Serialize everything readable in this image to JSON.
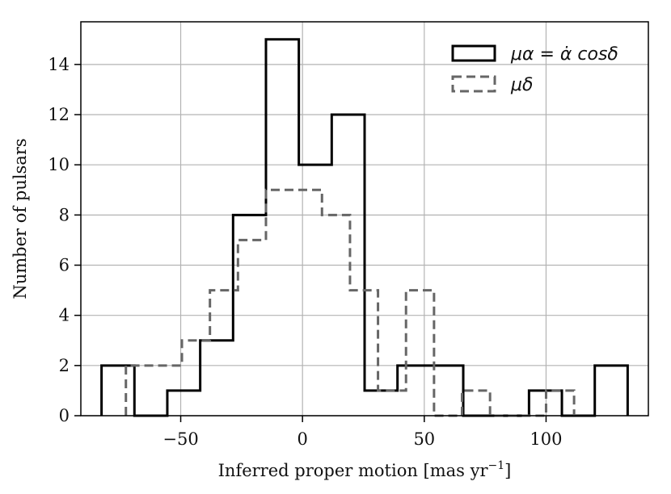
{
  "chart_data": {
    "type": "histogram",
    "xlabel": "Inferred proper motion [mas yr",
    "xlabel_sup": "−1",
    "xlabel_end": "]",
    "ylabel": "Number of pulsars",
    "xlim": [
      -91,
      142
    ],
    "ylim": [
      0,
      15.7
    ],
    "xticks": [
      -50,
      0,
      50,
      100
    ],
    "xtick_labels": [
      "−50",
      "0",
      "50",
      "100"
    ],
    "yticks": [
      0,
      2,
      4,
      6,
      8,
      10,
      12,
      14
    ],
    "ytick_labels": [
      "0",
      "2",
      "4",
      "6",
      "8",
      "10",
      "12",
      "14"
    ],
    "grid": true,
    "legend_position": "top-right",
    "series": [
      {
        "name": "μα = α̇ cosδ",
        "style": "solid",
        "color": "#000000",
        "edges": [
          -82.5,
          -69,
          -55.5,
          -42,
          -28.5,
          -15,
          -1.5,
          12,
          25.5,
          39,
          52.5,
          66,
          79.5,
          93,
          106.5,
          120,
          133.5
        ],
        "counts": [
          2,
          0,
          1,
          3,
          8,
          15,
          10,
          12,
          1,
          2,
          2,
          0,
          0,
          1,
          0,
          2
        ]
      },
      {
        "name": "μδ",
        "style": "dashed",
        "color": "#666666",
        "edges": [
          -72.5,
          -61,
          -49.5,
          -38,
          -26.5,
          -15,
          -3.5,
          8,
          19.5,
          31,
          42.5,
          54,
          65.5,
          77,
          88.5,
          100,
          111.5
        ],
        "counts": [
          2,
          2,
          3,
          5,
          7,
          9,
          9,
          8,
          5,
          1,
          5,
          0,
          1,
          0,
          0,
          1
        ]
      }
    ]
  }
}
